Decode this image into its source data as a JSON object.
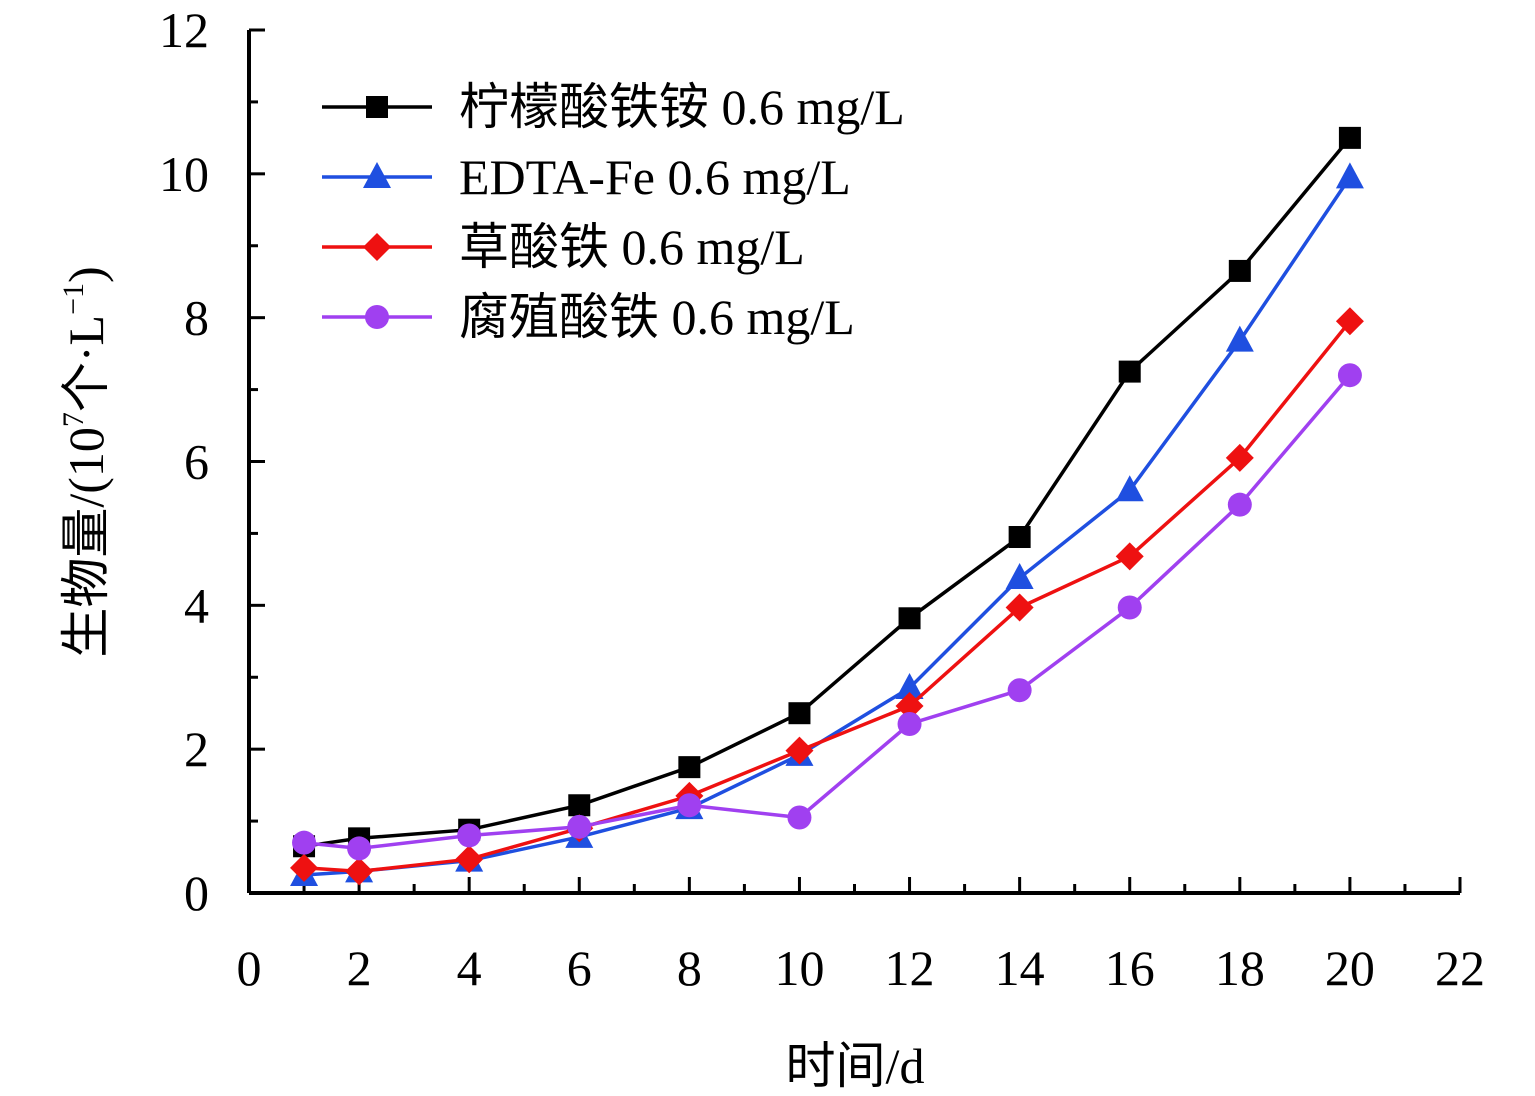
{
  "chart_data": {
    "type": "line",
    "title": "",
    "xlabel": "时间/d",
    "ylabel": "生物量/(10⁷个·L⁻¹)",
    "ylabel_parts": {
      "prefix": "生物量/(10",
      "sup1": "7",
      "mid": "个·L",
      "sup2": "−1",
      "suffix": ")"
    },
    "xlim": [
      0,
      22
    ],
    "ylim": [
      0,
      12
    ],
    "x_ticks": [
      "0",
      "2",
      "4",
      "6",
      "8",
      "10",
      "12",
      "14",
      "16",
      "18",
      "20",
      "22"
    ],
    "y_ticks": [
      "0",
      "2",
      "4",
      "6",
      "8",
      "10",
      "12"
    ],
    "legend_position": "top-left",
    "x": [
      1,
      2,
      4,
      6,
      8,
      10,
      12,
      14,
      16,
      18,
      20
    ],
    "series": [
      {
        "name": "柠檬酸铁铵 0.6 mg/L",
        "color": "#000000",
        "marker": "square",
        "values": [
          0.65,
          0.76,
          0.88,
          1.22,
          1.75,
          2.5,
          3.82,
          4.95,
          7.25,
          8.65,
          10.5
        ]
      },
      {
        "name": "EDTA-Fe 0.6 mg/L",
        "color": "#1f4fe0",
        "marker": "triangle",
        "values": [
          0.25,
          0.3,
          0.45,
          0.78,
          1.18,
          1.92,
          2.85,
          4.38,
          5.6,
          7.68,
          9.95
        ]
      },
      {
        "name": "草酸铁 0.6 mg/L",
        "color": "#ee1111",
        "marker": "diamond",
        "values": [
          0.35,
          0.3,
          0.47,
          0.9,
          1.35,
          1.98,
          2.6,
          3.97,
          4.68,
          6.05,
          7.95
        ]
      },
      {
        "name": "腐殖酸铁 0.6 mg/L",
        "color": "#a040f0",
        "marker": "circle",
        "values": [
          0.7,
          0.62,
          0.8,
          0.92,
          1.22,
          1.05,
          2.35,
          2.82,
          3.97,
          5.4,
          7.2
        ]
      }
    ]
  }
}
